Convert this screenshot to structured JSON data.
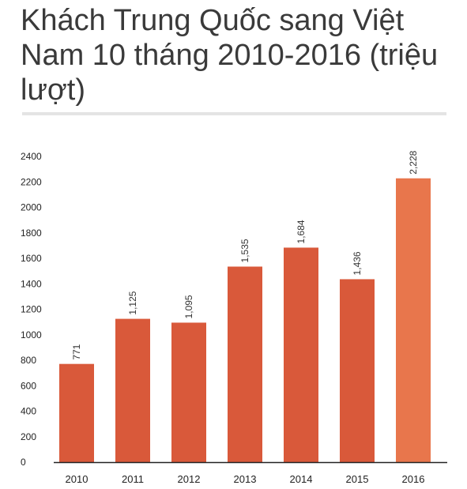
{
  "title": "Khách Trung Quốc sang Việt Nam 10 tháng 2010-2016 (triệu lượt)",
  "colors": {
    "bar": "#d9593a",
    "bar_highlight": "#e8764c",
    "axis": "#222222"
  },
  "chart_data": {
    "type": "bar",
    "title": "Khách Trung Quốc sang Việt Nam 10 tháng 2010-2016 (triệu lượt)",
    "xlabel": "",
    "ylabel": "",
    "categories": [
      "2010",
      "2011",
      "2012",
      "2013",
      "2014",
      "2015",
      "2016"
    ],
    "values": [
      771,
      1125,
      1095,
      1535,
      1684,
      1436,
      2228
    ],
    "value_labels": [
      "771",
      "1,125",
      "1,095",
      "1,535",
      "1,684",
      "1,436",
      "2,228"
    ],
    "highlight_index": 6,
    "ylim": [
      0,
      2400
    ],
    "yticks": [
      0,
      200,
      400,
      600,
      800,
      1000,
      1200,
      1400,
      1600,
      1800,
      2000,
      2200,
      2400
    ],
    "grid": false,
    "legend": "none"
  }
}
